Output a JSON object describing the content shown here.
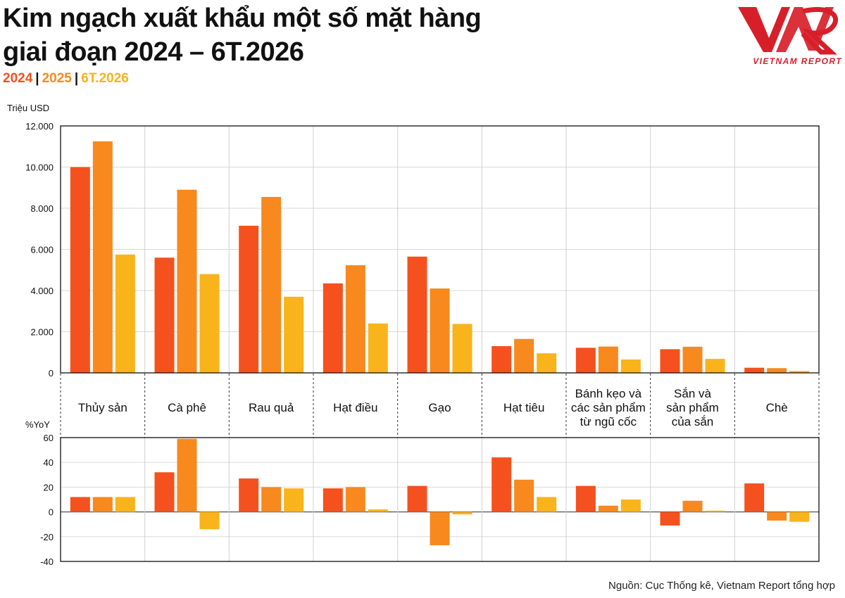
{
  "header": {
    "title_line1": "Kim ngạch xuất khẩu một số mặt hàng",
    "title_line2": "giai đoạn 2024 – 6T.2026"
  },
  "legend": {
    "items": [
      {
        "label": "2024",
        "color": "#F4511E"
      },
      {
        "label": "2025",
        "color": "#F7891F"
      },
      {
        "label": "6T.2026",
        "color": "#F9B31B"
      }
    ],
    "separator": "|"
  },
  "logo": {
    "text": "VIETNAM REPORT",
    "color": "#D71F2A"
  },
  "source": "Nguồn: Cục Thống kê, Vietnam Report tổng hợp",
  "chart_data": [
    {
      "type": "bar",
      "ylabel": "Triệu USD",
      "ylim": [
        0,
        12000
      ],
      "yticks": [
        0,
        2000,
        4000,
        6000,
        8000,
        10000,
        12000
      ],
      "ytick_labels": [
        "0",
        "2.000",
        "4.000",
        "6.000",
        "8.000",
        "10.000",
        "12.000"
      ],
      "grid": true,
      "categories": [
        [
          "Thủy sản"
        ],
        [
          "Cà phê"
        ],
        [
          "Rau quả"
        ],
        [
          "Hạt điều"
        ],
        [
          "Gạo"
        ],
        [
          "Hạt tiêu"
        ],
        [
          "Bánh kẹo và",
          "các sản phẩm",
          "từ ngũ cốc"
        ],
        [
          "Sắn và",
          "sản phẩm",
          "của sắn"
        ],
        [
          "Chè"
        ]
      ],
      "series": [
        {
          "name": "2024",
          "color": "#F4511E",
          "values": [
            10000,
            5600,
            7150,
            4350,
            5650,
            1300,
            1220,
            1150,
            250
          ]
        },
        {
          "name": "2025",
          "color": "#F7891F",
          "values": [
            11250,
            8900,
            8550,
            5230,
            4100,
            1650,
            1280,
            1270,
            230
          ]
        },
        {
          "name": "6T.2026",
          "color": "#F9B31B",
          "values": [
            5750,
            4800,
            3700,
            2400,
            2380,
            950,
            650,
            680,
            90
          ]
        }
      ]
    },
    {
      "type": "bar",
      "ylabel": "%YoY",
      "ylim": [
        -40,
        60
      ],
      "yticks": [
        -40,
        -20,
        0,
        20,
        40,
        60
      ],
      "ytick_labels": [
        "-40",
        "-20",
        "0",
        "20",
        "40",
        "60"
      ],
      "grid": true,
      "series": [
        {
          "name": "2024",
          "color": "#F4511E",
          "values": [
            12,
            32,
            27,
            19,
            21,
            44,
            21,
            -11,
            23
          ]
        },
        {
          "name": "2025",
          "color": "#F7891F",
          "values": [
            12,
            59,
            20,
            20,
            -27,
            26,
            5,
            9,
            -7
          ]
        },
        {
          "name": "6T.2026",
          "color": "#F9B31B",
          "values": [
            12,
            -14,
            19,
            2,
            -2,
            12,
            10,
            1,
            -8
          ]
        }
      ]
    }
  ]
}
